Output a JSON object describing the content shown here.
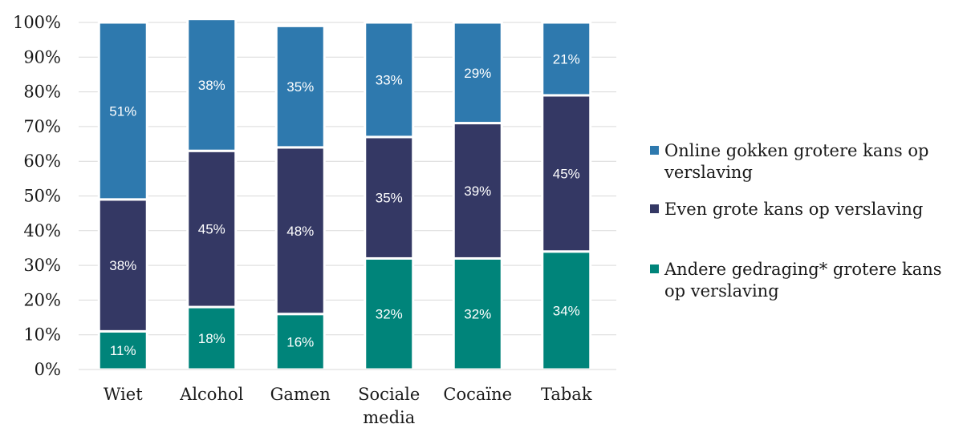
{
  "chart_data": {
    "type": "bar",
    "stacked": true,
    "categories": [
      [
        "Wiet"
      ],
      [
        "Alcohol"
      ],
      [
        "Gamen"
      ],
      [
        "Sociale",
        "media"
      ],
      [
        "Cocaïne"
      ],
      [
        "Tabak"
      ]
    ],
    "series": [
      {
        "name": [
          "Andere gedraging* grotere kans",
          "op verslaving"
        ],
        "color": "#00847a",
        "values": [
          11,
          18,
          16,
          32,
          32,
          34
        ],
        "labels": [
          "11%",
          "18%",
          "16%",
          "32%",
          "32%",
          "34%"
        ]
      },
      {
        "name": [
          "Even grote kans op verslaving"
        ],
        "color": "#343864",
        "values": [
          38,
          45,
          48,
          35,
          39,
          45
        ],
        "labels": [
          "38%",
          "45%",
          "48%",
          "35%",
          "39%",
          "45%"
        ]
      },
      {
        "name": [
          "Online gokken grotere kans op",
          "verslaving"
        ],
        "color": "#2e79ae",
        "values": [
          51,
          38,
          35,
          33,
          29,
          21
        ],
        "labels": [
          "51%",
          "38%",
          "35%",
          "33%",
          "29%",
          "21%"
        ]
      }
    ],
    "y_ticks": [
      "0%",
      "10%",
      "20%",
      "30%",
      "40%",
      "50%",
      "60%",
      "70%",
      "80%",
      "90%",
      "100%"
    ],
    "ylim": [
      0,
      100
    ],
    "grid": true,
    "legend_position": "right",
    "legend_order": [
      2,
      1,
      0
    ]
  }
}
